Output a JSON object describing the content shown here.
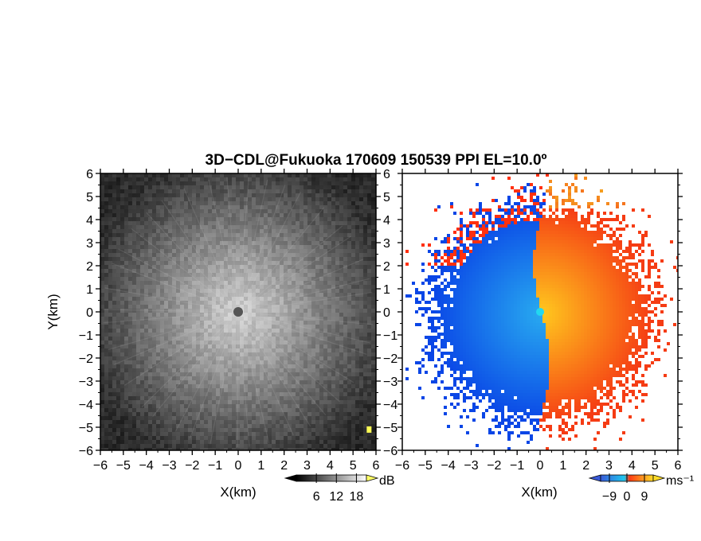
{
  "title": "3D−CDL@Fukuoka 170609 150539 PPI EL=10.0º",
  "chart_data": [
    {
      "type": "heatmap",
      "panel": "left",
      "quantity": "echo intensity",
      "xlabel": "X(km)",
      "ylabel": "Y(km)",
      "xlim": [
        -6,
        6
      ],
      "ylim": [
        -6,
        6
      ],
      "xticks": [
        -6,
        -5,
        -4,
        -3,
        -2,
        -1,
        0,
        1,
        2,
        3,
        4,
        5,
        6
      ],
      "yticks": [
        -6,
        -5,
        -4,
        -3,
        -2,
        -1,
        0,
        1,
        2,
        3,
        4,
        5,
        6
      ],
      "tick_labels": [
        "−6",
        "−5",
        "−4",
        "−3",
        "−2",
        "−1",
        "0",
        "1",
        "2",
        "3",
        "4",
        "5",
        "6"
      ],
      "colormap": "grayscale",
      "colorbar": {
        "unit": "dB",
        "ticks": [
          6,
          12,
          18
        ],
        "tick_labels": [
          "6",
          "12",
          "18"
        ],
        "colors": [
          "#000000",
          "#ffffff"
        ],
        "extends": "both"
      },
      "features": {
        "radar_center": [
          0,
          0
        ],
        "bright_region_radius_km": 4.0,
        "edge_target": {
          "x": 5.7,
          "y": -5.1,
          "color": "#ffff55"
        }
      }
    },
    {
      "type": "heatmap",
      "panel": "right",
      "quantity": "Doppler velocity",
      "xlabel": "X(km)",
      "ylabel": "",
      "xlim": [
        -6,
        6
      ],
      "ylim": [
        -6,
        6
      ],
      "xticks": [
        -6,
        -5,
        -4,
        -3,
        -2,
        -1,
        0,
        1,
        2,
        3,
        4,
        5,
        6
      ],
      "yticks": [
        -6,
        -5,
        -4,
        -3,
        -2,
        -1,
        0,
        1,
        2,
        3,
        4,
        5,
        6
      ],
      "tick_labels": [
        "−6",
        "−5",
        "−4",
        "−3",
        "−2",
        "−1",
        "0",
        "1",
        "2",
        "3",
        "4",
        "5",
        "6"
      ],
      "colormap": "diverging blue-red-yellow",
      "colorbar": {
        "unit": "ms⁻¹",
        "ticks": [
          -9,
          0,
          9
        ],
        "tick_labels": [
          "−9",
          "0",
          "9"
        ],
        "colors": [
          "#3a5ad8",
          "#1ec8f0",
          "#ff3c14",
          "#ffdc28"
        ],
        "extends": "both"
      },
      "features": {
        "radar_center": [
          0,
          0
        ],
        "negative_side": "west",
        "positive_side": "east",
        "coverage_radius_km": 4.8
      }
    }
  ]
}
